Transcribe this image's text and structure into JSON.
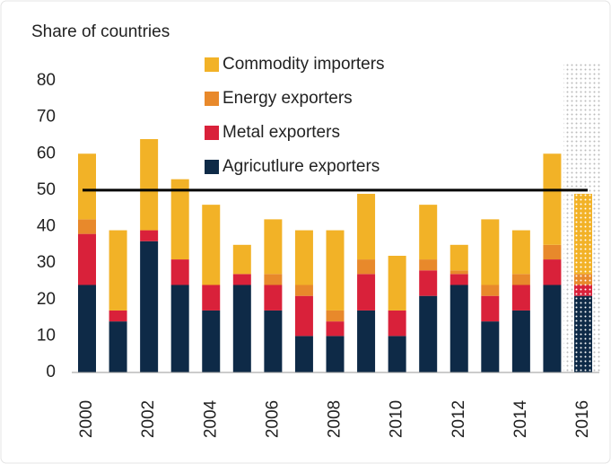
{
  "chart_data": {
    "type": "stacked_bar",
    "ylabel": "Share of countries",
    "categories": [
      "2000",
      null,
      "2002",
      null,
      "2004",
      null,
      "2006",
      null,
      "2008",
      null,
      "2010",
      null,
      "2012",
      null,
      "2014",
      null,
      "2016"
    ],
    "series": [
      {
        "name": "Agricutlure exporters",
        "color": "#0e2a47",
        "values": [
          24,
          14,
          36,
          24,
          17,
          24,
          17,
          10,
          10,
          17,
          10,
          21,
          24,
          14,
          17,
          24,
          21
        ]
      },
      {
        "name": "Metal exporters",
        "color": "#d9213a",
        "values": [
          14,
          3,
          3,
          7,
          7,
          3,
          7,
          11,
          4,
          10,
          7,
          7,
          3,
          7,
          7,
          7,
          3
        ]
      },
      {
        "name": "Energy exporters",
        "color": "#e8892b",
        "values": [
          4,
          0,
          0,
          0,
          0,
          0,
          3,
          3,
          3,
          4,
          0,
          3,
          1,
          3,
          3,
          4,
          3
        ]
      },
      {
        "name": "Commodity importers",
        "color": "#f2b227",
        "values": [
          18,
          22,
          25,
          22,
          22,
          8,
          15,
          15,
          22,
          18,
          15,
          15,
          7,
          18,
          12,
          25,
          22
        ]
      }
    ],
    "hline": 50,
    "ylim": [
      0,
      80
    ],
    "yticks": [
      0,
      10,
      20,
      30,
      40,
      50,
      60,
      70,
      80
    ]
  }
}
